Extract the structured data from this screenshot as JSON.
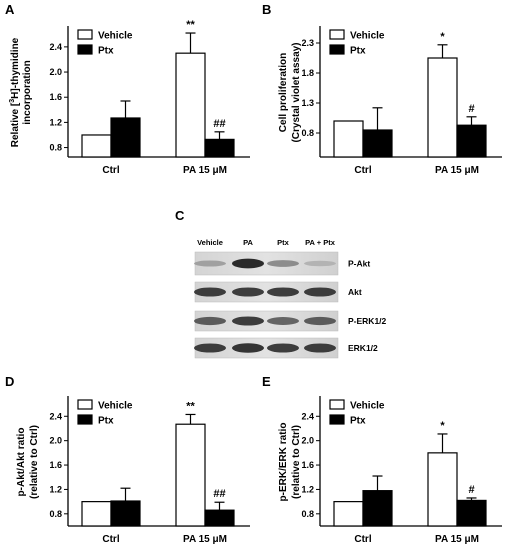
{
  "chart_data": [
    {
      "panel": "A",
      "type": "bar",
      "categories": [
        "Ctrl",
        "PA 15 μM"
      ],
      "ylabel_lines": [
        "Relative [",
        "3",
        "H]-thymidine",
        "incorporation"
      ],
      "yticks": [
        0.8,
        1.2,
        1.6,
        2.0,
        2.4
      ],
      "ylim": [
        0.65,
        2.7
      ],
      "legend": "top-left",
      "series": [
        {
          "name": "Vehicle",
          "color": "#ffffff",
          "values": [
            1.0,
            2.3
          ],
          "errors": [
            0,
            0.32
          ],
          "annotations": [
            "",
            "**"
          ]
        },
        {
          "name": "Ptx",
          "color": "#000000",
          "values": [
            1.27,
            0.93
          ],
          "errors": [
            0.27,
            0.12
          ],
          "annotations": [
            "",
            "##"
          ]
        }
      ]
    },
    {
      "panel": "B",
      "type": "bar",
      "categories": [
        "Ctrl",
        "PA 15 μM"
      ],
      "ylabel_lines": [
        "Cell proliferation",
        "(Crystal violet assay)"
      ],
      "yticks": [
        0.8,
        1.3,
        1.8,
        2.3
      ],
      "ylim": [
        0.4,
        2.55
      ],
      "legend": "top-left",
      "series": [
        {
          "name": "Vehicle",
          "color": "#ffffff",
          "values": [
            1.0,
            2.05
          ],
          "errors": [
            0,
            0.22
          ],
          "annotations": [
            "",
            "*"
          ]
        },
        {
          "name": "Ptx",
          "color": "#000000",
          "values": [
            0.85,
            0.93
          ],
          "errors": [
            0.37,
            0.14
          ],
          "annotations": [
            "",
            "#"
          ]
        }
      ]
    },
    {
      "panel": "D",
      "type": "bar",
      "categories": [
        "Ctrl",
        "PA 15 μM"
      ],
      "ylabel_lines": [
        "p-Akt/Akt ratio",
        "(relative to Ctrl)"
      ],
      "yticks": [
        0.8,
        1.2,
        1.6,
        2.0,
        2.4
      ],
      "ylim": [
        0.6,
        2.7
      ],
      "legend": "top-left",
      "series": [
        {
          "name": "Vehicle",
          "color": "#ffffff",
          "values": [
            1.0,
            2.27
          ],
          "errors": [
            0,
            0.16
          ],
          "annotations": [
            "",
            "**"
          ]
        },
        {
          "name": "Ptx",
          "color": "#000000",
          "values": [
            1.01,
            0.86
          ],
          "errors": [
            0.21,
            0.13
          ],
          "annotations": [
            "",
            "##"
          ]
        }
      ]
    },
    {
      "panel": "E",
      "type": "bar",
      "categories": [
        "Ctrl",
        "PA 15 μM"
      ],
      "ylabel_lines": [
        "p-ERK/ERK ratio",
        "(relative to Ctrl)"
      ],
      "yticks": [
        0.8,
        1.2,
        1.6,
        2.0,
        2.4
      ],
      "ylim": [
        0.6,
        2.7
      ],
      "legend": "top-left",
      "series": [
        {
          "name": "Vehicle",
          "color": "#ffffff",
          "values": [
            1.0,
            1.8
          ],
          "errors": [
            0,
            0.31
          ],
          "annotations": [
            "",
            "*"
          ]
        },
        {
          "name": "Ptx",
          "color": "#000000",
          "values": [
            1.18,
            1.02
          ],
          "errors": [
            0.24,
            0.04
          ],
          "annotations": [
            "",
            "#"
          ]
        }
      ]
    }
  ],
  "blot": {
    "panel": "C",
    "lanes": [
      "Vehicle",
      "PA",
      "Ptx",
      "PA + Ptx"
    ],
    "rows": [
      {
        "label": "P-Akt",
        "intensities": [
          0.35,
          0.95,
          0.45,
          0.25
        ]
      },
      {
        "label": "Akt",
        "intensities": [
          0.85,
          0.85,
          0.85,
          0.85
        ]
      },
      {
        "label": "P-ERK1/2",
        "intensities": [
          0.7,
          0.85,
          0.65,
          0.7
        ]
      },
      {
        "label": "ERK1/2",
        "intensities": [
          0.85,
          0.9,
          0.85,
          0.85
        ]
      }
    ]
  }
}
